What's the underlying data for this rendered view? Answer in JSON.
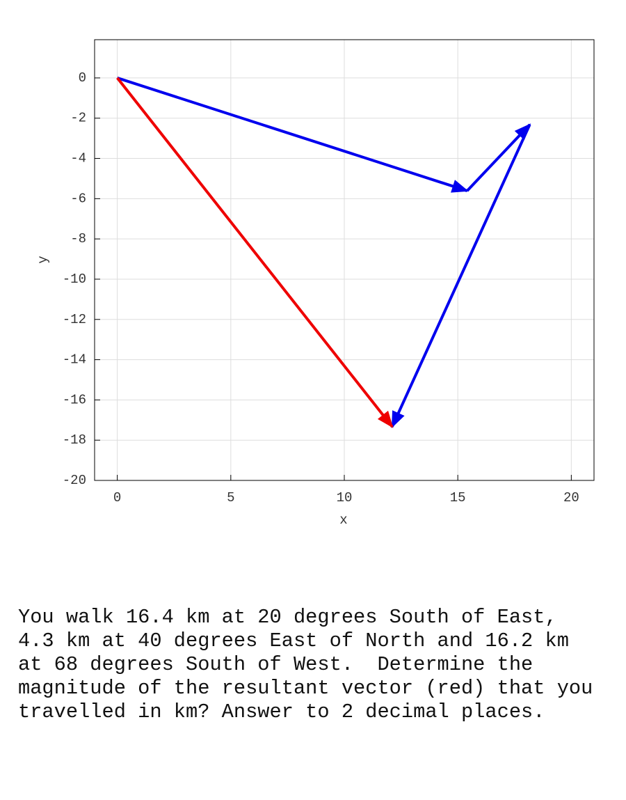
{
  "chart_data": {
    "type": "vector",
    "xlabel": "x",
    "ylabel": "y",
    "xlim": [
      -1,
      21
    ],
    "ylim": [
      -20,
      1.9
    ],
    "xticks": [
      0,
      5,
      10,
      15,
      20
    ],
    "yticks": [
      0,
      -2,
      -4,
      -6,
      -8,
      -10,
      -12,
      -14,
      -16,
      -18,
      -20
    ],
    "grid": true,
    "series": [
      {
        "color": "#0000ee",
        "x": [
          0,
          15.41
        ],
        "y": [
          0,
          -5.61
        ]
      },
      {
        "color": "#0000ee",
        "x": [
          15.41,
          18.17
        ],
        "y": [
          -5.61,
          -2.32
        ]
      },
      {
        "color": "#0000ee",
        "x": [
          18.17,
          12.11
        ],
        "y": [
          -2.32,
          -17.33
        ]
      },
      {
        "color": "#ee0000",
        "x": [
          0,
          12.11
        ],
        "y": [
          0,
          -17.33
        ]
      }
    ]
  },
  "question": {
    "lines": [
      "You walk 16.4 km at 20 degrees South of East,",
      "4.3 km at 40 degrees East of North and 16.2 km",
      "at 68 degrees South of West.  Determine the",
      "magnitude of the resultant vector (red) that you",
      "travelled in km? Answer to 2 decimal places."
    ]
  }
}
